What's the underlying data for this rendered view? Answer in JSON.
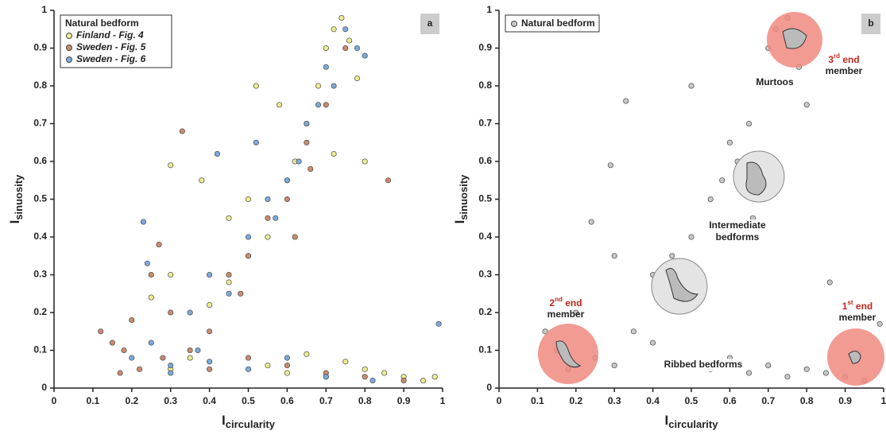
{
  "chart_data": [
    {
      "type": "scatter",
      "panel_label": "a",
      "x_label": "I",
      "x_label_sub": "circularity",
      "y_label": "I",
      "y_label_sub": "sinuosity",
      "xlim": [
        0,
        1
      ],
      "ylim": [
        0,
        1
      ],
      "xticks": [
        0,
        0.1,
        0.2,
        0.3,
        0.4,
        0.5,
        0.6,
        0.7,
        0.8,
        0.9,
        1
      ],
      "yticks": [
        0,
        0.1,
        0.2,
        0.3,
        0.4,
        0.5,
        0.6,
        0.7,
        0.8,
        0.9,
        1
      ],
      "legend_title": "Natural bedform",
      "legend": "upper left",
      "series": [
        {
          "name": "Finland - Fig. 4",
          "color": "#ecec94",
          "x": [
            0.3,
            0.35,
            0.4,
            0.45,
            0.5,
            0.55,
            0.6,
            0.62,
            0.65,
            0.68,
            0.7,
            0.72,
            0.74,
            0.76,
            0.78,
            0.8,
            0.55,
            0.6,
            0.65,
            0.7,
            0.75,
            0.8,
            0.85,
            0.9,
            0.95,
            0.98,
            0.25,
            0.3,
            0.45,
            0.5,
            0.52,
            0.58,
            0.72,
            0.3,
            0.38
          ],
          "y": [
            0.05,
            0.08,
            0.22,
            0.28,
            0.35,
            0.4,
            0.55,
            0.6,
            0.7,
            0.8,
            0.9,
            0.95,
            0.98,
            0.92,
            0.82,
            0.6,
            0.06,
            0.04,
            0.09,
            0.03,
            0.07,
            0.05,
            0.04,
            0.03,
            0.02,
            0.03,
            0.24,
            0.59,
            0.45,
            0.5,
            0.8,
            0.75,
            0.62,
            0.3,
            0.55
          ]
        },
        {
          "name": "Sweden - Fig. 5",
          "color": "#c98c70",
          "x": [
            0.12,
            0.15,
            0.18,
            0.2,
            0.22,
            0.25,
            0.28,
            0.3,
            0.35,
            0.4,
            0.45,
            0.5,
            0.55,
            0.6,
            0.65,
            0.7,
            0.75,
            0.33,
            0.86,
            0.4,
            0.5,
            0.6,
            0.7,
            0.8,
            0.9,
            0.17,
            0.27,
            0.48,
            0.62,
            0.66
          ],
          "y": [
            0.15,
            0.12,
            0.1,
            0.18,
            0.05,
            0.3,
            0.08,
            0.2,
            0.1,
            0.15,
            0.3,
            0.35,
            0.45,
            0.5,
            0.65,
            0.75,
            0.9,
            0.68,
            0.55,
            0.05,
            0.08,
            0.06,
            0.04,
            0.03,
            0.02,
            0.04,
            0.38,
            0.25,
            0.4,
            0.58
          ]
        },
        {
          "name": "Sweden - Fig. 6",
          "color": "#7eaadb",
          "x": [
            0.2,
            0.23,
            0.25,
            0.3,
            0.35,
            0.4,
            0.45,
            0.5,
            0.55,
            0.6,
            0.65,
            0.7,
            0.75,
            0.8,
            0.42,
            0.52,
            0.57,
            0.63,
            0.68,
            0.72,
            0.78,
            0.3,
            0.4,
            0.5,
            0.6,
            0.7,
            0.24,
            0.37,
            0.82,
            0.99
          ],
          "y": [
            0.08,
            0.44,
            0.12,
            0.06,
            0.2,
            0.3,
            0.25,
            0.4,
            0.5,
            0.55,
            0.7,
            0.85,
            0.95,
            0.88,
            0.62,
            0.65,
            0.45,
            0.6,
            0.75,
            0.8,
            0.9,
            0.04,
            0.07,
            0.05,
            0.08,
            0.03,
            0.33,
            0.1,
            0.02,
            0.17
          ]
        }
      ]
    },
    {
      "type": "scatter",
      "panel_label": "b",
      "x_label": "I",
      "x_label_sub": "circularity",
      "y_label": "I",
      "y_label_sub": "sinuosity",
      "xlim": [
        0,
        1
      ],
      "ylim": [
        0,
        1
      ],
      "xticks": [
        0,
        0.1,
        0.2,
        0.3,
        0.4,
        0.5,
        0.6,
        0.7,
        0.8,
        0.9,
        1
      ],
      "yticks": [
        0,
        0.1,
        0.2,
        0.3,
        0.4,
        0.5,
        0.6,
        0.7,
        0.8,
        0.9,
        1
      ],
      "legend": "upper left",
      "series": [
        {
          "name": "Natural bedform",
          "color": "#c8c8c8",
          "x": [
            0.12,
            0.15,
            0.18,
            0.2,
            0.25,
            0.3,
            0.35,
            0.4,
            0.45,
            0.5,
            0.55,
            0.6,
            0.62,
            0.65,
            0.68,
            0.7,
            0.72,
            0.75,
            0.78,
            0.8,
            0.33,
            0.29,
            0.24,
            0.55,
            0.6,
            0.65,
            0.7,
            0.75,
            0.8,
            0.85,
            0.9,
            0.95,
            0.5,
            0.4,
            0.45,
            0.58,
            0.66,
            0.86,
            0.99,
            0.3
          ],
          "y": [
            0.15,
            0.1,
            0.05,
            0.2,
            0.08,
            0.06,
            0.15,
            0.3,
            0.25,
            0.4,
            0.5,
            0.65,
            0.6,
            0.7,
            0.8,
            0.9,
            0.95,
            0.98,
            0.85,
            0.75,
            0.76,
            0.59,
            0.44,
            0.05,
            0.08,
            0.04,
            0.06,
            0.03,
            0.05,
            0.04,
            0.03,
            0.02,
            0.8,
            0.12,
            0.35,
            0.55,
            0.45,
            0.28,
            0.17,
            0.35
          ]
        }
      ],
      "annotations": [
        {
          "lines": [
            "Murtoos"
          ]
        },
        {
          "lines": [
            "Intermediate",
            "bedforms"
          ]
        },
        {
          "lines": [
            "Ribbed bedforms"
          ]
        },
        {
          "num": "3",
          "sup": "rd",
          "after": " end",
          "line2": "member"
        },
        {
          "num": "2",
          "sup": "nd",
          "after": " end",
          "line2": "member"
        },
        {
          "num": "1",
          "sup": "st",
          "after": " end",
          "line2": "member"
        }
      ]
    }
  ]
}
